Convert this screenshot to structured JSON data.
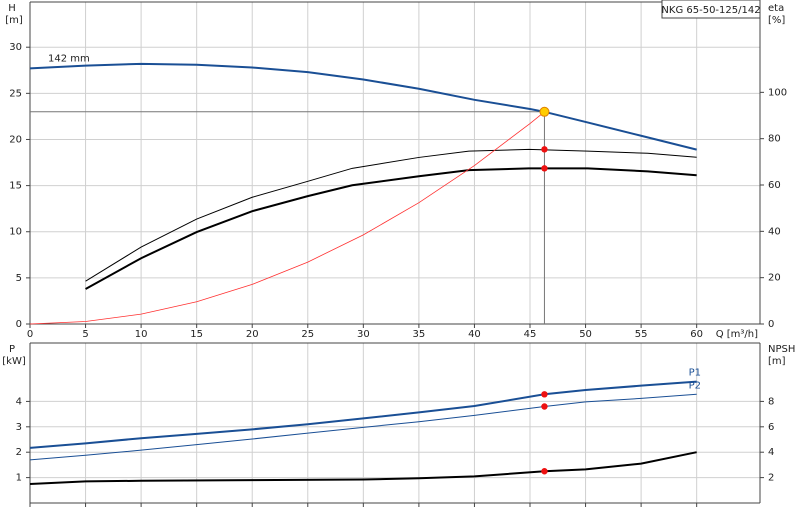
{
  "chart_data": [
    {
      "type": "line",
      "title": "NKG 65-50-125/142",
      "x_label": "Q [m³/h]",
      "y_label": "H",
      "y_unit": "[m]",
      "y2_label": "eta",
      "y2_unit": "[%]",
      "xlim": [
        0,
        65.7
      ],
      "xticks": [
        0,
        5,
        10,
        15,
        20,
        25,
        30,
        35,
        40,
        45,
        50,
        55,
        60
      ],
      "ylim": [
        0,
        34.9
      ],
      "yticks": [
        0,
        5,
        10,
        15,
        20,
        25,
        30
      ],
      "y2lim": [
        0,
        139
      ],
      "y2ticks": [
        0,
        20,
        40,
        60,
        80,
        100
      ],
      "grid": true,
      "series": [
        {
          "name": "142 mm",
          "color": "#1a4f95",
          "width": 2,
          "x": [
            0,
            5,
            10,
            15,
            20,
            25,
            30,
            35,
            40,
            45,
            46.3,
            50,
            55,
            60
          ],
          "values": [
            27.7,
            28.0,
            28.2,
            28.1,
            27.8,
            27.3,
            26.5,
            25.5,
            24.3,
            23.3,
            23.0,
            21.9,
            20.4,
            18.9
          ]
        },
        {
          "color": "#000000",
          "width": 1,
          "axis": "y2",
          "x": [
            5,
            10,
            15,
            20,
            25,
            29,
            35,
            39.5,
            44.9,
            50.2,
            55.6,
            60
          ],
          "values": [
            18.5,
            33.2,
            45.3,
            54.7,
            61.6,
            67.2,
            71.9,
            74.6,
            75.4,
            74.6,
            73.7,
            72.0
          ]
        },
        {
          "color": "#000000",
          "width": 2,
          "axis": "y2",
          "x": [
            5,
            10,
            15,
            20,
            25,
            29,
            35,
            39.5,
            44.9,
            50.2,
            55.6,
            60
          ],
          "values": [
            15.1,
            28.4,
            39.7,
            48.7,
            55.2,
            59.9,
            63.8,
            66.4,
            67.2,
            67.2,
            65.9,
            64.2
          ]
        },
        {
          "color": "#ff3030",
          "width": 0.8,
          "x": [
            0,
            5,
            10,
            15,
            20,
            25,
            30,
            35,
            40,
            45,
            46.3
          ],
          "values": [
            0,
            0.27,
            1.07,
            2.41,
            4.29,
            6.71,
            9.66,
            13.15,
            17.17,
            21.73,
            23.0
          ]
        }
      ],
      "operating_point": {
        "x": 46.3,
        "y": 23.0
      },
      "points": [
        {
          "x": 46.3,
          "y": 75.4,
          "axis": "y2"
        },
        {
          "x": 46.3,
          "y": 67.2,
          "axis": "y2"
        }
      ]
    },
    {
      "type": "line",
      "y_label": "P",
      "y_unit": "[kW]",
      "y2_label": "NPSH",
      "y2_unit": "[m]",
      "xlim": [
        0,
        65.7
      ],
      "xticks": [
        0,
        5,
        10,
        15,
        20,
        25,
        30,
        35,
        40,
        45,
        50,
        55,
        60
      ],
      "ylim": [
        0,
        6.3
      ],
      "yticks": [
        1,
        2,
        3,
        4
      ],
      "y2lim": [
        0,
        12.6
      ],
      "y2ticks": [
        2,
        4,
        6,
        8
      ],
      "grid": true,
      "series": [
        {
          "name": "P1",
          "color": "#1a4f95",
          "width": 2,
          "x": [
            0,
            5,
            10,
            15,
            20,
            25,
            30,
            35,
            40,
            46.3,
            50,
            55,
            60
          ],
          "values": [
            2.17,
            2.35,
            2.55,
            2.72,
            2.9,
            3.1,
            3.33,
            3.57,
            3.82,
            4.28,
            4.45,
            4.62,
            4.78
          ]
        },
        {
          "name": "P2",
          "color": "#1a4f95",
          "width": 1,
          "x": [
            0,
            5,
            10,
            15,
            20,
            25,
            30,
            35,
            40,
            46.3,
            50,
            55,
            60
          ],
          "values": [
            1.7,
            1.88,
            2.08,
            2.3,
            2.52,
            2.75,
            2.98,
            3.2,
            3.45,
            3.8,
            3.98,
            4.12,
            4.28
          ]
        },
        {
          "color": "#000000",
          "width": 2,
          "axis": "y2",
          "x": [
            0,
            5,
            10,
            20,
            30,
            35,
            40,
            46.3,
            50,
            55,
            60
          ],
          "values": [
            1.5,
            1.7,
            1.75,
            1.8,
            1.85,
            1.95,
            2.1,
            2.5,
            2.65,
            3.1,
            4.0
          ]
        }
      ],
      "points": [
        {
          "x": 46.3,
          "y": 4.28
        },
        {
          "x": 46.3,
          "y": 3.8
        },
        {
          "x": 46.3,
          "y": 2.5,
          "axis": "y2"
        }
      ]
    }
  ]
}
